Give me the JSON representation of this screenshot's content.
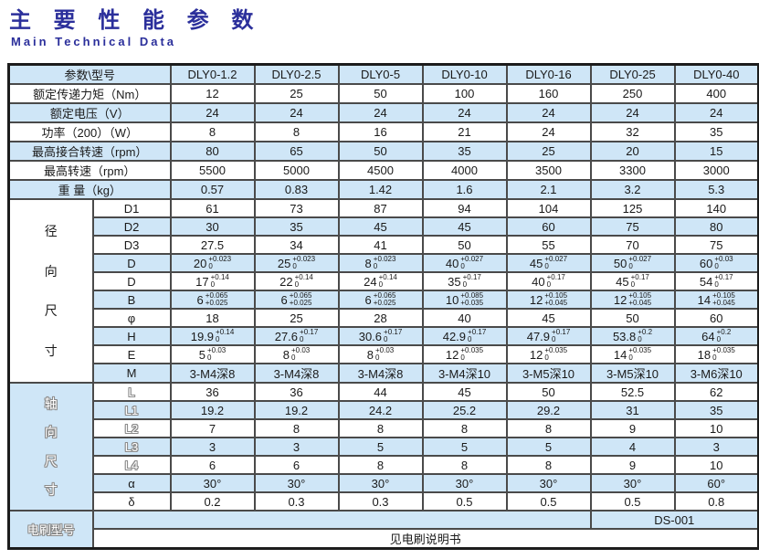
{
  "page": {
    "title_zh": "主 要 性 能 参 数",
    "title_en": "Main Technical Data"
  },
  "colors": {
    "accent_blue": "#2b2f9b",
    "stripe_blue": "#cfe6f7",
    "grid_line": "#4a4a4a"
  },
  "table": {
    "corner_label": "参数\\型号",
    "models": [
      "DLY0-1.2",
      "DLY0-2.5",
      "DLY0-5",
      "DLY0-10",
      "DLY0-16",
      "DLY0-25",
      "DLY0-40"
    ],
    "general_rows": [
      {
        "label": "额定传递力矩（Nm）",
        "values": [
          "12",
          "25",
          "50",
          "100",
          "160",
          "250",
          "400"
        ]
      },
      {
        "label": "额定电压（V）",
        "values": [
          "24",
          "24",
          "24",
          "24",
          "24",
          "24",
          "24"
        ]
      },
      {
        "label": "功率（200）（W）",
        "values": [
          "8",
          "8",
          "16",
          "21",
          "24",
          "32",
          "35"
        ]
      },
      {
        "label": "最高接合转速（rpm）",
        "values": [
          "80",
          "65",
          "50",
          "35",
          "25",
          "20",
          "15"
        ]
      },
      {
        "label": "最高转速（rpm）",
        "values": [
          "5500",
          "5000",
          "4500",
          "4000",
          "3500",
          "3300",
          "3000"
        ]
      },
      {
        "label": "重 量（kg）",
        "values": [
          "0.57",
          "0.83",
          "1.42",
          "1.6",
          "2.1",
          "3.2",
          "5.3"
        ]
      }
    ],
    "radial": {
      "section_label": "径向尺寸",
      "rows": [
        {
          "label": "D1",
          "values": [
            "61",
            "73",
            "87",
            "94",
            "104",
            "125",
            "140"
          ]
        },
        {
          "label": "D2",
          "values": [
            "30",
            "35",
            "45",
            "45",
            "60",
            "75",
            "80"
          ]
        },
        {
          "label": "D3",
          "values": [
            "27.5",
            "34",
            "41",
            "50",
            "55",
            "70",
            "75"
          ]
        },
        {
          "label": "D",
          "values": [
            {
              "v": "20",
              "hi": "+0.023",
              "lo": "0"
            },
            {
              "v": "25",
              "hi": "+0.023",
              "lo": "0"
            },
            {
              "v": "8",
              "hi": "+0.023",
              "lo": "0"
            },
            {
              "v": "40",
              "hi": "+0.027",
              "lo": "0"
            },
            {
              "v": "45",
              "hi": "+0.027",
              "lo": "0"
            },
            {
              "v": "50",
              "hi": "+0.027",
              "lo": "0"
            },
            {
              "v": "60",
              "hi": "+0.03",
              "lo": "0"
            }
          ]
        },
        {
          "label": "D",
          "values": [
            {
              "v": "17",
              "hi": "+0.14",
              "lo": "0"
            },
            {
              "v": "22",
              "hi": "+0.14",
              "lo": "0"
            },
            {
              "v": "24",
              "hi": "+0.14",
              "lo": "0"
            },
            {
              "v": "35",
              "hi": "+0.17",
              "lo": "0"
            },
            {
              "v": "40",
              "hi": "+0.17",
              "lo": "0"
            },
            {
              "v": "45",
              "hi": "+0.17",
              "lo": "0"
            },
            {
              "v": "54",
              "hi": "+0.17",
              "lo": "0"
            }
          ]
        },
        {
          "label": "B",
          "values": [
            {
              "v": "6",
              "hi": "+0.065",
              "lo": "+0.025"
            },
            {
              "v": "6",
              "hi": "+0.065",
              "lo": "+0.025"
            },
            {
              "v": "6",
              "hi": "+0.065",
              "lo": "+0.025"
            },
            {
              "v": "10",
              "hi": "+0.085",
              "lo": "+0.035"
            },
            {
              "v": "12",
              "hi": "+0.105",
              "lo": "+0.045"
            },
            {
              "v": "12",
              "hi": "+0.105",
              "lo": "+0.045"
            },
            {
              "v": "14",
              "hi": "+0.105",
              "lo": "+0.045"
            }
          ]
        },
        {
          "label": "φ",
          "values": [
            "18",
            "25",
            "28",
            "40",
            "45",
            "50",
            "60"
          ]
        },
        {
          "label": "H",
          "values": [
            {
              "v": "19.9",
              "hi": "+0.14",
              "lo": "0"
            },
            {
              "v": "27.6",
              "hi": "+0.17",
              "lo": "0"
            },
            {
              "v": "30.6",
              "hi": "+0.17",
              "lo": "0"
            },
            {
              "v": "42.9",
              "hi": "+0.17",
              "lo": "0"
            },
            {
              "v": "47.9",
              "hi": "+0.17",
              "lo": "0"
            },
            {
              "v": "53.8",
              "hi": "+0.2",
              "lo": "0"
            },
            {
              "v": "64",
              "hi": "+0.2",
              "lo": "0"
            }
          ]
        },
        {
          "label": "E",
          "values": [
            {
              "v": "5",
              "hi": "+0.03",
              "lo": "0"
            },
            {
              "v": "8",
              "hi": "+0.03",
              "lo": "0"
            },
            {
              "v": "8",
              "hi": "+0.03",
              "lo": "0"
            },
            {
              "v": "12",
              "hi": "+0.035",
              "lo": "0"
            },
            {
              "v": "12",
              "hi": "+0.035",
              "lo": "0"
            },
            {
              "v": "14",
              "hi": "+0.035",
              "lo": "0"
            },
            {
              "v": "18",
              "hi": "+0.035",
              "lo": "0"
            }
          ]
        },
        {
          "label": "M",
          "values": [
            "3-M4深8",
            "3-M4深8",
            "3-M4深8",
            "3-M4深10",
            "3-M5深10",
            "3-M5深10",
            "3-M6深10"
          ]
        }
      ]
    },
    "axial": {
      "section_label": "轴向尺寸",
      "rows": [
        {
          "label": "L",
          "values": [
            "36",
            "36",
            "44",
            "45",
            "50",
            "52.5",
            "62"
          ]
        },
        {
          "label": "L1",
          "values": [
            "19.2",
            "19.2",
            "24.2",
            "25.2",
            "29.2",
            "31",
            "35"
          ]
        },
        {
          "label": "L2",
          "values": [
            "7",
            "8",
            "8",
            "8",
            "8",
            "9",
            "10"
          ]
        },
        {
          "label": "L3",
          "values": [
            "3",
            "3",
            "5",
            "5",
            "5",
            "4",
            "3"
          ]
        },
        {
          "label": "L4",
          "values": [
            "6",
            "6",
            "8",
            "8",
            "8",
            "9",
            "10"
          ]
        },
        {
          "label": "α",
          "values": [
            "30°",
            "30°",
            "30°",
            "30°",
            "30°",
            "30°",
            "60°"
          ]
        },
        {
          "label": "δ",
          "values": [
            "0.2",
            "0.3",
            "0.3",
            "0.5",
            "0.5",
            "0.5",
            "0.8"
          ]
        }
      ]
    },
    "brush": {
      "section_label": "电刷型号",
      "model": "DS-001",
      "note": "见电刷说明书"
    }
  }
}
